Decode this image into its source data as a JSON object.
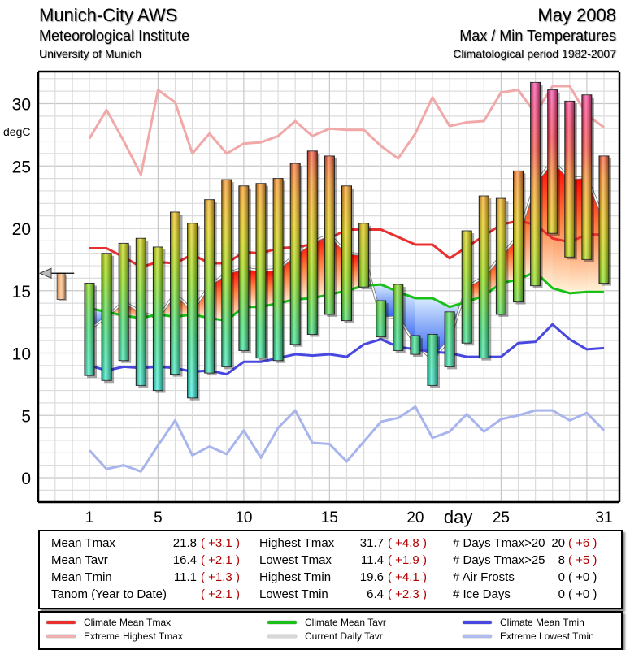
{
  "header": {
    "station": "Munich-City AWS",
    "institute": "Meteorological Institute",
    "university": "University of Munich",
    "month": "May 2008",
    "subtitle": "Max / Min Temperatures",
    "period": "Climatological period 1982-2007"
  },
  "chart_data": {
    "type": "bar",
    "title": "Max / Min Temperatures - May 2008",
    "xlabel": "day",
    "ylabel": "degC",
    "ylim": [
      -2,
      33
    ],
    "xlim": [
      1,
      31
    ],
    "grid": true,
    "y_ticks": [
      0,
      5,
      10,
      15,
      20,
      25,
      30
    ],
    "x_ticks": [
      1,
      5,
      10,
      15,
      20,
      25,
      31
    ],
    "days": [
      1,
      2,
      3,
      4,
      5,
      6,
      7,
      8,
      9,
      10,
      11,
      12,
      13,
      14,
      15,
      16,
      17,
      18,
      19,
      20,
      21,
      22,
      23,
      24,
      25,
      26,
      27,
      28,
      29,
      30,
      31
    ],
    "tmax": [
      15.6,
      18.0,
      18.8,
      19.2,
      18.5,
      21.3,
      20.4,
      22.3,
      23.9,
      23.4,
      23.6,
      24.0,
      25.2,
      26.2,
      25.8,
      23.4,
      20.4,
      14.2,
      15.5,
      11.4,
      11.5,
      13.3,
      19.8,
      22.6,
      22.4,
      24.6,
      31.7,
      31.1,
      30.2,
      30.7,
      25.8
    ],
    "tmin": [
      8.2,
      7.8,
      9.4,
      7.4,
      7.0,
      8.3,
      6.4,
      8.4,
      8.9,
      10.2,
      9.6,
      9.4,
      10.7,
      11.5,
      13.1,
      12.6,
      15.3,
      11.3,
      10.2,
      9.9,
      7.4,
      8.9,
      10.8,
      9.6,
      13.1,
      14.1,
      15.4,
      19.6,
      17.7,
      17.5,
      15.6
    ],
    "series": [
      {
        "name": "Climate Mean Tmax",
        "color": "#e83030",
        "values": [
          18.4,
          18.4,
          17.7,
          16.9,
          17.3,
          17.2,
          17.9,
          17.2,
          17.2,
          18.1,
          18.0,
          18.4,
          18.5,
          18.7,
          19.2,
          19.9,
          19.9,
          19.9,
          19.3,
          18.7,
          18.7,
          17.6,
          18.5,
          19.4,
          20.3,
          20.6,
          20.3,
          19.2,
          18.9,
          19.5,
          19.5
        ]
      },
      {
        "name": "Extreme Highest Tmax",
        "color": "#f0a8a8",
        "values": [
          27.2,
          29.5,
          27.0,
          24.3,
          31.1,
          30.1,
          26.0,
          27.6,
          26.0,
          26.8,
          26.9,
          27.4,
          28.6,
          27.4,
          28.0,
          27.9,
          27.9,
          26.6,
          25.6,
          27.6,
          30.5,
          28.2,
          28.5,
          28.6,
          30.9,
          31.1,
          29.2,
          31.4,
          31.4,
          29.1,
          28.1
        ]
      },
      {
        "name": "Climate Mean Tavr",
        "color": "#18c018",
        "values": [
          13.6,
          13.3,
          13.0,
          12.8,
          13.1,
          12.9,
          13.1,
          12.8,
          12.6,
          13.7,
          13.7,
          14.0,
          14.3,
          14.4,
          14.7,
          15.0,
          15.4,
          15.5,
          14.9,
          14.4,
          14.4,
          13.7,
          14.1,
          14.6,
          15.6,
          15.9,
          16.5,
          15.2,
          14.8,
          14.9,
          14.9
        ]
      },
      {
        "name": "Current Daily Tavr",
        "color": "#c0c0c0",
        "values": [
          11.9,
          12.9,
          14.1,
          13.3,
          12.8,
          14.8,
          13.4,
          15.4,
          16.4,
          16.8,
          16.6,
          16.7,
          17.9,
          18.9,
          19.5,
          18.0,
          17.9,
          12.8,
          12.9,
          10.7,
          9.5,
          11.1,
          15.3,
          16.1,
          17.8,
          19.4,
          23.6,
          25.4,
          24.0,
          24.1,
          20.7
        ]
      },
      {
        "name": "Climate Mean Tmin",
        "color": "#4848e0",
        "values": [
          9.0,
          8.6,
          8.9,
          8.8,
          8.9,
          8.8,
          8.5,
          8.6,
          8.3,
          9.3,
          9.3,
          9.6,
          9.9,
          9.8,
          9.9,
          9.7,
          10.7,
          11.1,
          10.5,
          10.3,
          10.1,
          10.0,
          9.7,
          9.7,
          9.7,
          10.8,
          10.9,
          12.3,
          11.1,
          10.3,
          10.4
        ]
      },
      {
        "name": "Extreme Lowest Tmin",
        "color": "#a8b4ec",
        "values": [
          2.2,
          0.7,
          1.0,
          0.5,
          2.6,
          4.6,
          1.8,
          2.5,
          1.9,
          3.8,
          1.6,
          4.0,
          5.4,
          2.8,
          2.7,
          1.3,
          2.9,
          4.5,
          4.8,
          5.7,
          3.2,
          3.7,
          5.1,
          3.7,
          4.7,
          5.0,
          5.4,
          5.4,
          4.6,
          5.2,
          3.8
        ]
      }
    ],
    "monthly_marker": {
      "mean_tavr": 16.4,
      "climate_mean_tavr": 14.3,
      "arrow_value": 16.4
    },
    "legend_position": "bottom"
  },
  "stats": {
    "col1": [
      {
        "label": "Mean Tmax",
        "value": "21.8",
        "anom": "( +3.1 )"
      },
      {
        "label": "Mean Tavr",
        "value": "16.4",
        "anom": "( +2.1 )"
      },
      {
        "label": "Mean Tmin",
        "value": "11.1",
        "anom": "( +1.3 )"
      },
      {
        "label": "Tanom (Year to Date)",
        "value": "",
        "anom": "( +2.1 )"
      }
    ],
    "col2": [
      {
        "label": "Highest Tmax",
        "value": "31.7",
        "anom": "( +4.8 )"
      },
      {
        "label": "Lowest Tmax",
        "value": "11.4",
        "anom": "( +1.9 )"
      },
      {
        "label": "Highest Tmin",
        "value": "19.6",
        "anom": "( +4.1 )"
      },
      {
        "label": "Lowest Tmin",
        "value": "6.4",
        "anom": "( +2.3 )"
      }
    ],
    "col3": [
      {
        "label": "# Days Tmax>20",
        "value": "20",
        "anom": "( +6 )",
        "anom_black": false
      },
      {
        "label": "# Days Tmax>25",
        "value": "8",
        "anom": "( +5 )",
        "anom_black": false
      },
      {
        "label": "# Air Frosts",
        "value": "0",
        "anom": "( +0 )",
        "anom_black": true
      },
      {
        "label": "# Ice Days",
        "value": "0",
        "anom": "( +0 )",
        "anom_black": true
      }
    ]
  },
  "legend": [
    {
      "label": "Climate Mean Tmax",
      "color": "#e83030"
    },
    {
      "label": "Climate Mean Tavr",
      "color": "#18c018"
    },
    {
      "label": "Climate Mean Tmin",
      "color": "#4848e0"
    },
    {
      "label": "Extreme Highest Tmax",
      "color": "#f0b0b0"
    },
    {
      "label": "Current Daily Tavr",
      "color": "#d8d8d8"
    },
    {
      "label": "Extreme Lowest Tmin",
      "color": "#b0bcf0"
    }
  ]
}
